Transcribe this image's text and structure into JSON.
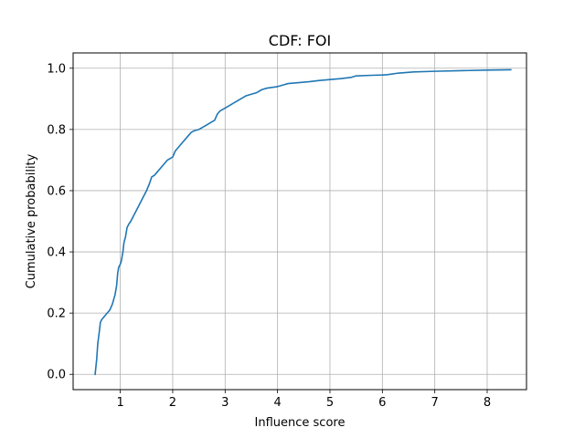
{
  "chart_data": {
    "type": "line",
    "title": "CDF: FOI",
    "xlabel": "Influence score",
    "ylabel": "Cumulative probability",
    "xlim": [
      0.1,
      8.75
    ],
    "ylim": [
      -0.05,
      1.05
    ],
    "xticks": [
      1,
      2,
      3,
      4,
      5,
      6,
      7,
      8
    ],
    "yticks": [
      0.0,
      0.2,
      0.4,
      0.6,
      0.8,
      1.0
    ],
    "xtick_labels": [
      "1",
      "2",
      "3",
      "4",
      "5",
      "6",
      "7",
      "8"
    ],
    "ytick_labels": [
      "0.0",
      "0.2",
      "0.4",
      "0.6",
      "0.8",
      "1.0"
    ],
    "grid": true,
    "series": [
      {
        "color": "#1f77b4",
        "x": [
          0.52,
          0.55,
          0.57,
          0.6,
          0.62,
          0.65,
          0.7,
          0.75,
          0.8,
          0.85,
          0.9,
          0.93,
          0.95,
          0.97,
          1.0,
          1.02,
          1.05,
          1.07,
          1.1,
          1.13,
          1.16,
          1.2,
          1.26,
          1.32,
          1.38,
          1.44,
          1.5,
          1.55,
          1.6,
          1.65,
          1.7,
          1.8,
          1.9,
          2.0,
          2.05,
          2.1,
          2.2,
          2.3,
          2.35,
          2.4,
          2.5,
          2.6,
          2.7,
          2.75,
          2.8,
          2.85,
          2.9,
          3.0,
          3.1,
          3.2,
          3.3,
          3.4,
          3.5,
          3.6,
          3.7,
          3.8,
          4.0,
          4.1,
          4.2,
          4.4,
          4.6,
          4.8,
          5.0,
          5.2,
          5.4,
          5.5,
          5.8,
          6.0,
          6.1,
          6.3,
          6.6,
          7.0,
          7.5,
          8.0,
          8.45
        ],
        "y": [
          0.0,
          0.05,
          0.1,
          0.14,
          0.17,
          0.18,
          0.19,
          0.2,
          0.21,
          0.23,
          0.26,
          0.29,
          0.33,
          0.35,
          0.36,
          0.37,
          0.4,
          0.43,
          0.45,
          0.48,
          0.49,
          0.5,
          0.52,
          0.54,
          0.56,
          0.58,
          0.6,
          0.62,
          0.645,
          0.65,
          0.66,
          0.68,
          0.7,
          0.71,
          0.73,
          0.74,
          0.76,
          0.78,
          0.79,
          0.795,
          0.8,
          0.81,
          0.82,
          0.825,
          0.83,
          0.85,
          0.86,
          0.87,
          0.88,
          0.89,
          0.9,
          0.91,
          0.915,
          0.92,
          0.93,
          0.935,
          0.94,
          0.945,
          0.95,
          0.953,
          0.956,
          0.96,
          0.963,
          0.966,
          0.97,
          0.975,
          0.977,
          0.978,
          0.979,
          0.984,
          0.988,
          0.99,
          0.992,
          0.994,
          0.995
        ]
      }
    ]
  }
}
